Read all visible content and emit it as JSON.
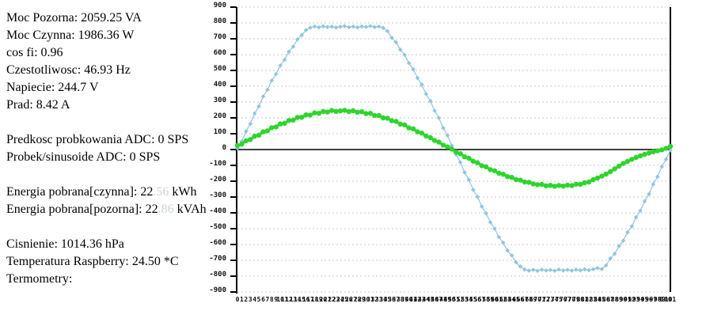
{
  "panel": {
    "moc_pozorna": "Moc Pozorna: 2059.25 VA",
    "moc_czynna": "Moc Czynna: 1986.36 W",
    "cos_fi": "cos fi: 0.96",
    "czestotliwosc": "Czestotliwosc: 46.93 Hz",
    "napiecie": "Napiecie: 244.7 V",
    "prad": "Prad: 8.42 A",
    "predkosc_adc": "Predkosc probkowania ADC: 0 SPS",
    "probek_adc": "Probek/sinusoide ADC: 0 SPS",
    "energia_czynna_prefix": "Energia pobrana[czynna]: 22",
    "energia_czynna_faded": ".56",
    "energia_czynna_suffix": " kWh",
    "energia_pozorna_prefix": "Energia pobrana[pozorna]: 22",
    "energia_pozorna_faded": ".86",
    "energia_pozorna_suffix": " kVAh",
    "cisnienie": "Cisnienie: 1014.36 hPa",
    "temperatura": "Temperatura Raspberry: 24.50 *C",
    "termometry": "Termometry:"
  },
  "colors": {
    "blue_series": "#8fc6de",
    "green_series": "#2fd42f",
    "grid": "#c8c8c8",
    "axis": "#000000",
    "faded_text": "#ccd4d0"
  },
  "chart_data": {
    "type": "line",
    "title": "",
    "xlabel": "",
    "ylabel": "",
    "legend": "none",
    "grid": "horizontal-dashed",
    "xlim": [
      0,
      101
    ],
    "ylim": [
      -900,
      900
    ],
    "yticks": [
      900,
      800,
      700,
      600,
      500,
      400,
      300,
      200,
      100,
      0,
      -100,
      -200,
      -300,
      -400,
      -500,
      -600,
      -700,
      -800,
      -900
    ],
    "xticks": [
      0,
      1,
      2,
      3,
      4,
      5,
      6,
      7,
      8,
      9,
      10,
      11,
      12,
      13,
      14,
      15,
      16,
      17,
      18,
      19,
      20,
      21,
      22,
      23,
      24,
      25,
      26,
      27,
      28,
      29,
      30,
      31,
      32,
      33,
      34,
      35,
      36,
      37,
      38,
      39,
      40,
      41,
      42,
      43,
      44,
      45,
      46,
      47,
      48,
      49,
      50,
      51,
      52,
      53,
      54,
      55,
      56,
      57,
      58,
      59,
      60,
      61,
      62,
      63,
      64,
      65,
      66,
      67,
      68,
      69,
      70,
      71,
      72,
      73,
      74,
      75,
      76,
      77,
      78,
      79,
      80,
      81,
      82,
      83,
      84,
      85,
      86,
      87,
      88,
      89,
      90,
      91,
      92,
      93,
      94,
      95,
      96,
      97,
      98,
      99,
      100,
      101
    ],
    "x": [
      0,
      1,
      2,
      3,
      4,
      5,
      6,
      7,
      8,
      9,
      10,
      11,
      12,
      13,
      14,
      15,
      16,
      17,
      18,
      19,
      20,
      21,
      22,
      23,
      24,
      25,
      26,
      27,
      28,
      29,
      30,
      31,
      32,
      33,
      34,
      35,
      36,
      37,
      38,
      39,
      40,
      41,
      42,
      43,
      44,
      45,
      46,
      47,
      48,
      49,
      50,
      51,
      52,
      53,
      54,
      55,
      56,
      57,
      58,
      59,
      60,
      61,
      62,
      63,
      64,
      65,
      66,
      67,
      68,
      69,
      70,
      71,
      72,
      73,
      74,
      75,
      76,
      77,
      78,
      79,
      80,
      81,
      82,
      83,
      84,
      85,
      86,
      87,
      88,
      89,
      90,
      91,
      92,
      93,
      94,
      95,
      96,
      97,
      98,
      99,
      100,
      101
    ],
    "series": [
      {
        "name": "blue-series",
        "color": "#8fc6de",
        "marker": "diamond",
        "line_width": 1.2,
        "values": [
          8,
          52,
          115,
          163,
          228,
          273,
          335,
          378,
          436,
          477,
          531,
          568,
          618,
          650,
          696,
          723,
          755,
          770,
          778,
          772,
          779,
          774,
          777,
          771,
          776,
          780,
          773,
          777,
          772,
          778,
          775,
          780,
          774,
          777,
          769,
          748,
          706,
          678,
          631,
          598,
          546,
          508,
          452,
          411,
          351,
          307,
          245,
          200,
          136,
          89,
          25,
          -31,
          -80,
          -144,
          -191,
          -254,
          -299,
          -360,
          -403,
          -460,
          -500,
          -553,
          -589,
          -638,
          -669,
          -713,
          -739,
          -758,
          -765,
          -760,
          -766,
          -759,
          -764,
          -761,
          -766,
          -758,
          -764,
          -760,
          -765,
          -759,
          -763,
          -757,
          -762,
          -756,
          -749,
          -755,
          -732,
          -688,
          -659,
          -610,
          -576,
          -523,
          -485,
          -428,
          -386,
          -326,
          -281,
          -219,
          -172,
          -108,
          -61,
          -5
        ]
      },
      {
        "name": "green-series",
        "color": "#2fd42f",
        "marker": "circle",
        "line_width": 3.2,
        "values": [
          25,
          34,
          55,
          63,
          84,
          91,
          112,
          118,
          138,
          143,
          162,
          166,
          184,
          186,
          203,
          204,
          219,
          218,
          232,
          229,
          241,
          237,
          247,
          241,
          244,
          248,
          240,
          245,
          236,
          239,
          227,
          229,
          215,
          215,
          200,
          198,
          182,
          178,
          161,
          156,
          137,
          131,
          112,
          104,
          85,
          76,
          57,
          47,
          28,
          17,
          3,
          -16,
          -26,
          -46,
          -55,
          -74,
          -83,
          -102,
          -109,
          -127,
          -134,
          -150,
          -156,
          -171,
          -176,
          -190,
          -193,
          -205,
          -207,
          -217,
          -222,
          -220,
          -229,
          -226,
          -232,
          -227,
          -231,
          -225,
          -228,
          -219,
          -220,
          -210,
          -205,
          -190,
          -180,
          -168,
          -155,
          -140,
          -122,
          -105,
          -88,
          -75,
          -62,
          -50,
          -40,
          -30,
          -22,
          -14,
          -8,
          -2,
          8,
          20
        ]
      }
    ]
  }
}
